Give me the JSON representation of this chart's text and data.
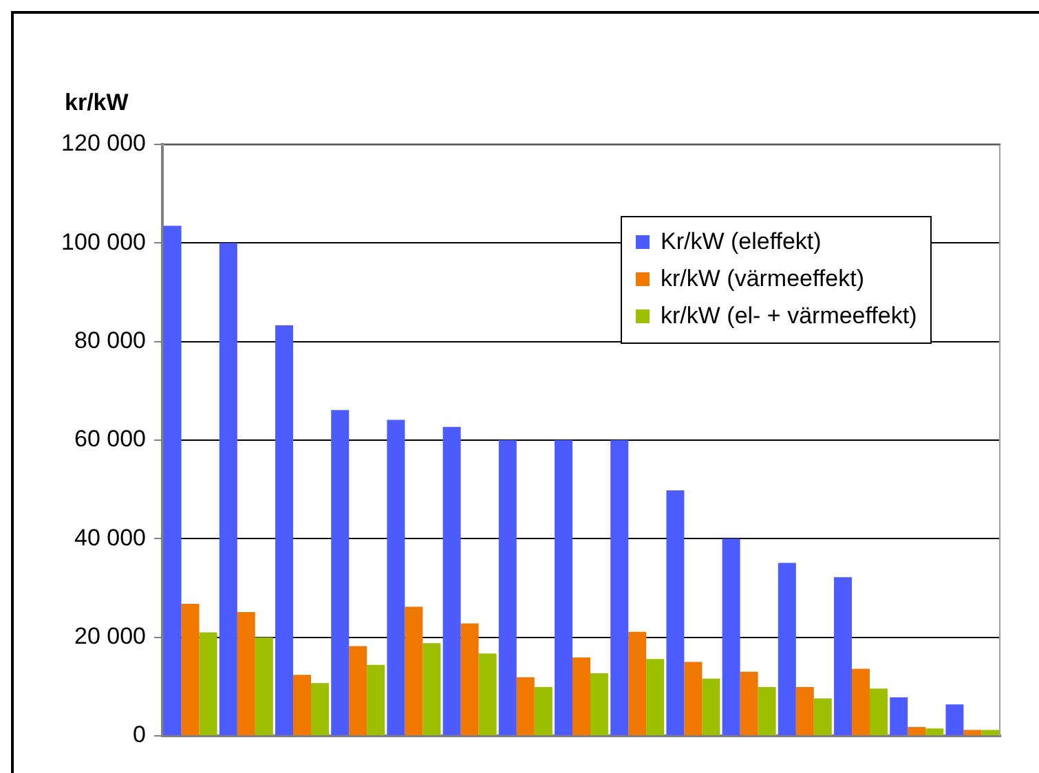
{
  "chart_data": {
    "type": "bar",
    "ylabel": "kr/kW",
    "categories": [
      null,
      null,
      null,
      null,
      null,
      null,
      null,
      null,
      null,
      null,
      null,
      null,
      null,
      null,
      null
    ],
    "series": [
      {
        "name": "Kr/kW (eleffekt)",
        "color": "#4d5cff",
        "values": [
          103500,
          100000,
          83300,
          66100,
          64100,
          62700,
          60000,
          60000,
          60000,
          49800,
          40000,
          35100,
          32200,
          7800,
          6400
        ]
      },
      {
        "name": "kr/kW (värmeeffekt)",
        "color": "#f07800",
        "values": [
          26800,
          25100,
          12400,
          18200,
          26200,
          22800,
          11900,
          15900,
          21100,
          15000,
          13000,
          9900,
          13600,
          1800,
          1200
        ]
      },
      {
        "name": "kr/kW (el- + värmeeffekt)",
        "color": "#9cc000",
        "values": [
          21000,
          20000,
          10700,
          14400,
          18800,
          16700,
          9900,
          12700,
          15600,
          11600,
          9900,
          7600,
          9600,
          1500,
          1200
        ]
      }
    ],
    "ylim": [
      0,
      120000
    ],
    "yticks": [
      0,
      20000,
      40000,
      60000,
      80000,
      100000,
      120000
    ],
    "grid": "y",
    "legend": "top right"
  }
}
